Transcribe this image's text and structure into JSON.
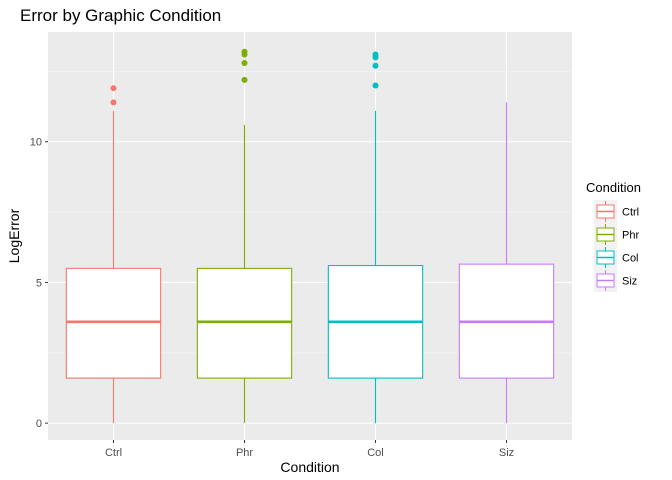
{
  "chart_data": {
    "type": "boxplot",
    "title": "Error by Graphic Condition",
    "xlabel": "Condition",
    "ylabel": "LogError",
    "ylim": [
      -0.6,
      13.9
    ],
    "yticks": [
      0,
      5,
      10
    ],
    "grid": true,
    "legend": {
      "title": "Condition",
      "placement": "right"
    },
    "categories": [
      "Ctrl",
      "Phr",
      "Col",
      "Siz"
    ],
    "series": [
      {
        "name": "Ctrl",
        "color": "#F8766D",
        "min": 0,
        "q1": 1.6,
        "median": 3.6,
        "q3": 5.5,
        "max": 11.1,
        "outliers": [
          11.4,
          11.9
        ]
      },
      {
        "name": "Phr",
        "color": "#7CAE00",
        "min": 0,
        "q1": 1.6,
        "median": 3.6,
        "q3": 5.5,
        "max": 10.6,
        "outliers": [
          12.2,
          12.8,
          13.1,
          13.2
        ]
      },
      {
        "name": "Col",
        "color": "#00BFC4",
        "min": 0,
        "q1": 1.6,
        "median": 3.6,
        "q3": 5.6,
        "max": 11.1,
        "outliers": [
          12.0,
          12.7,
          13.0,
          13.1
        ]
      },
      {
        "name": "Siz",
        "color": "#C77CFF",
        "min": 0,
        "q1": 1.6,
        "median": 3.6,
        "q3": 5.65,
        "max": 11.4,
        "outliers": []
      }
    ]
  }
}
